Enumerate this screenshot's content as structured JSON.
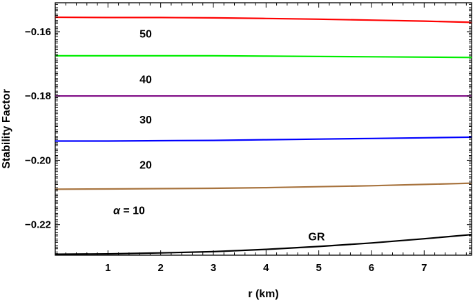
{
  "chart_data": {
    "type": "line",
    "title": "",
    "xlabel": "r (km)",
    "ylabel": "Stability Factor",
    "xlim": [
      0,
      7.9
    ],
    "ylim": [
      -0.2295,
      -0.151
    ],
    "x_ticks": [
      1,
      2,
      3,
      4,
      5,
      6,
      7
    ],
    "y_ticks": [
      -0.16,
      -0.18,
      -0.2,
      -0.22
    ],
    "x_tick_labels": [
      "1",
      "2",
      "3",
      "4",
      "5",
      "6",
      "7"
    ],
    "y_tick_labels": [
      "−0.16",
      "−0.18",
      "−0.20",
      "−0.22"
    ],
    "grid": false,
    "legend": "none",
    "series": [
      {
        "name": "50",
        "label_text": "50",
        "color": "#ff0000",
        "x": [
          0,
          1,
          2,
          3,
          4,
          5,
          6,
          7,
          7.9
        ],
        "y": [
          -0.1555,
          -0.1556,
          -0.1556,
          -0.1557,
          -0.1559,
          -0.1561,
          -0.1564,
          -0.1567,
          -0.1571
        ],
        "label_at": [
          1.6,
          -0.1605
        ]
      },
      {
        "name": "40",
        "label_text": "40",
        "color": "#00ee00",
        "x": [
          0,
          1,
          2,
          3,
          4,
          5,
          6,
          7,
          7.9
        ],
        "y": [
          -0.1675,
          -0.1675,
          -0.1675,
          -0.1675,
          -0.1676,
          -0.1677,
          -0.1678,
          -0.1679,
          -0.168
        ],
        "label_at": [
          1.6,
          -0.1747
        ]
      },
      {
        "name": "30",
        "label_text": "30",
        "color": "#7a0080",
        "x": [
          0,
          1,
          2,
          3,
          4,
          5,
          6,
          7,
          7.9
        ],
        "y": [
          -0.18,
          -0.18,
          -0.18,
          -0.18,
          -0.18,
          -0.18,
          -0.18,
          -0.18,
          -0.18
        ],
        "label_at": [
          1.6,
          -0.1872
        ]
      },
      {
        "name": "20",
        "label_text": "20",
        "color": "#0000ff",
        "x": [
          0,
          1,
          2,
          3,
          4,
          5,
          6,
          7,
          7.9
        ],
        "y": [
          -0.194,
          -0.194,
          -0.1939,
          -0.1938,
          -0.1936,
          -0.1934,
          -0.1932,
          -0.193,
          -0.1928
        ],
        "label_at": [
          1.6,
          -0.2013
        ]
      },
      {
        "name": "α = 10",
        "label_text": "α = 10",
        "color": "#a8743f",
        "x": [
          0,
          1,
          2,
          3,
          4,
          5,
          6,
          7,
          7.9
        ],
        "y": [
          -0.209,
          -0.2089,
          -0.2088,
          -0.2087,
          -0.2085,
          -0.2082,
          -0.2079,
          -0.2075,
          -0.2071
        ],
        "label_at": [
          1.1,
          -0.2155
        ]
      },
      {
        "name": "GR",
        "label_text": "GR",
        "color": "#000000",
        "x": [
          0,
          1,
          2,
          3,
          4,
          5,
          6,
          7,
          7.9
        ],
        "y": [
          -0.2292,
          -0.2291,
          -0.2288,
          -0.2284,
          -0.2277,
          -0.2268,
          -0.2257,
          -0.2244,
          -0.2231
        ],
        "label_at": [
          4.8,
          -0.2236
        ]
      }
    ]
  }
}
